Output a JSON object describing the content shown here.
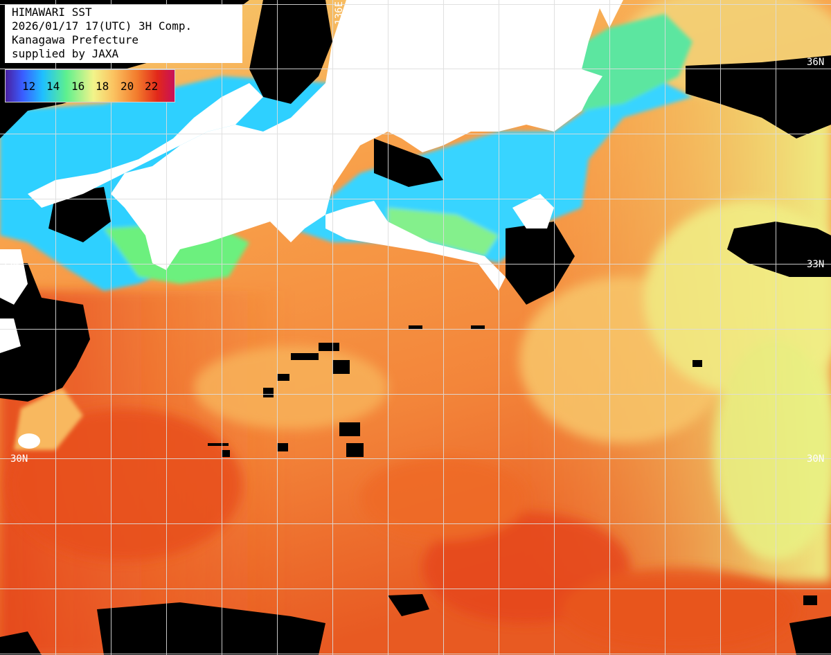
{
  "header": {
    "line1": "HIMAWARI SST",
    "line2": "2026/01/17 17(UTC) 3H Comp.",
    "line3": "Kanagawa Prefecture",
    "line4": "supplied by JAXA"
  },
  "legend": {
    "ticks": [
      "12",
      "14",
      "16",
      "18",
      "20",
      "22"
    ]
  },
  "grid_labels": {
    "lat_36": "36N",
    "lat_33": "33N",
    "lat_30": "30N",
    "lon_136": "136E"
  },
  "colors": {
    "land": "#ffffff",
    "cloud": "#000000",
    "grid": "#d8d8d8",
    "sst_cold": "#1fb8ff",
    "sst_cool": "#62f08a",
    "sst_mild": "#f4f38c",
    "sst_warm": "#fbbd58",
    "sst_hot": "#f07c2e",
    "sst_hottest": "#e8461c"
  }
}
